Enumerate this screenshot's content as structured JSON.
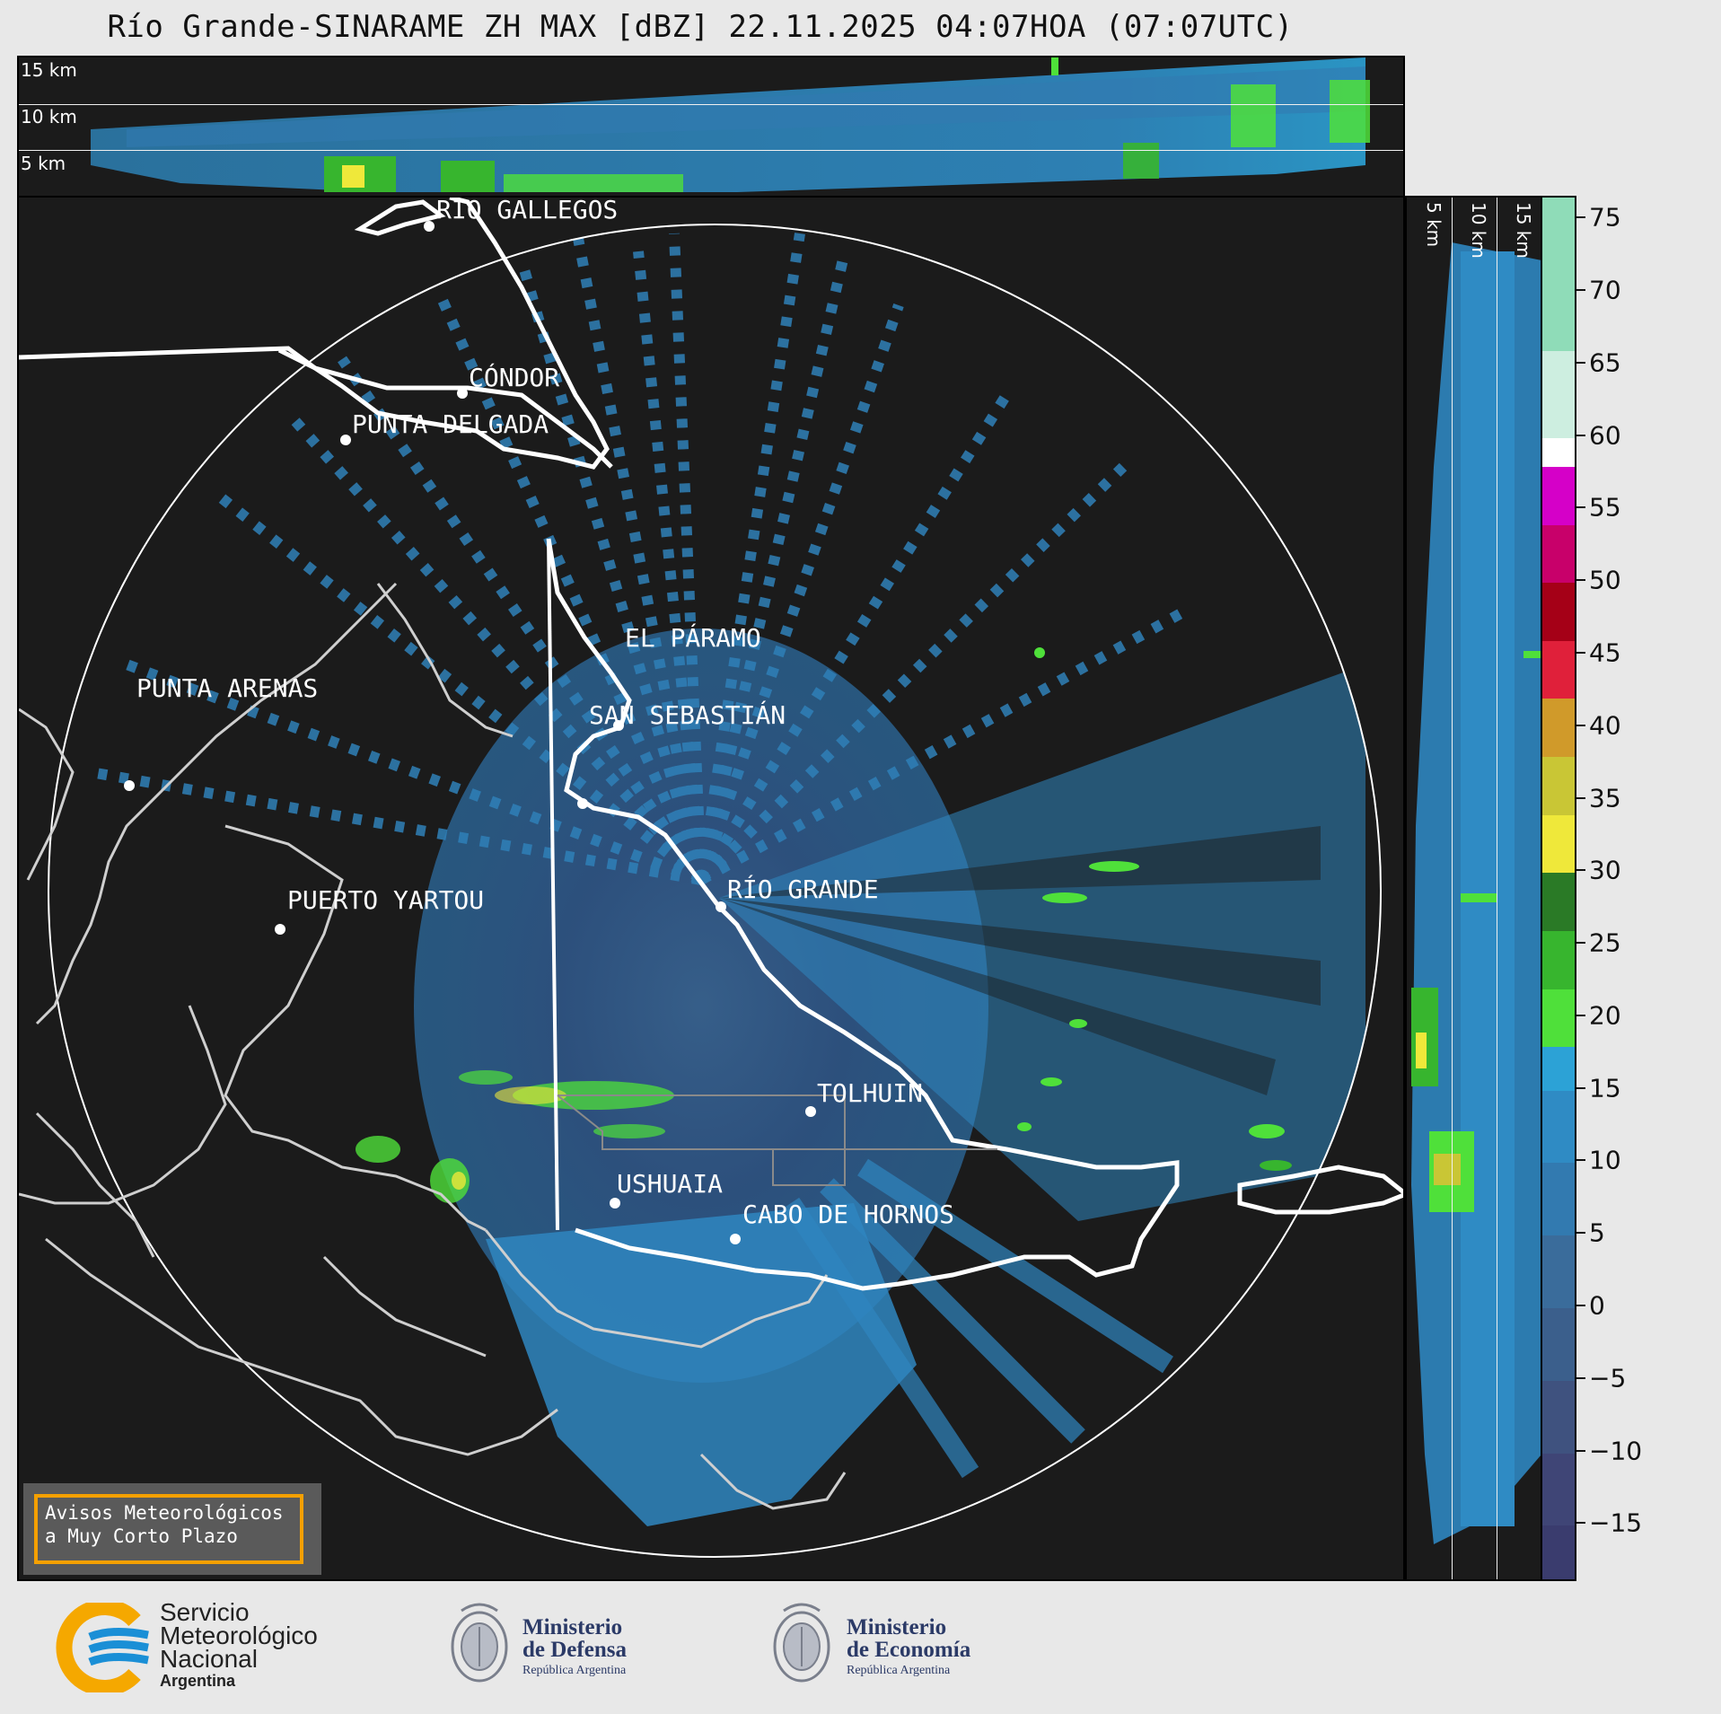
{
  "header": {
    "title": "Río Grande-SINARAME ZH MAX [dBZ] 22.11.2025 04:07HOA (07:07UTC)"
  },
  "top_panel": {
    "altitude_labels": [
      "15 km",
      "10 km",
      "5 km"
    ]
  },
  "side_panel": {
    "altitude_labels": [
      "5 km",
      "10 km",
      "15 km"
    ]
  },
  "map": {
    "cities": [
      "RÍO GALLEGOS",
      "CÓNDOR",
      "PUNTA DELGADA",
      "EL PÁRAMO",
      "SAN SEBASTIÁN",
      "PUNTA ARENAS",
      "RÍO GRANDE",
      "PUERTO YARTOU",
      "TOLHUIN",
      "USHUAIA",
      "CABO DE HORNOS"
    ]
  },
  "colorbar": {
    "unit": "dBZ",
    "range": [
      -19,
      76.5
    ],
    "ticks": [
      "75",
      "70",
      "65",
      "60",
      "55",
      "50",
      "45",
      "40",
      "35",
      "30",
      "25",
      "20",
      "15",
      "10",
      "5",
      "0",
      "−5",
      "−10",
      "−15"
    ],
    "tick_values": [
      75,
      70,
      65,
      60,
      55,
      50,
      45,
      40,
      35,
      30,
      25,
      20,
      15,
      10,
      5,
      0,
      -5,
      -10,
      -15
    ],
    "bands": [
      {
        "from": -19,
        "to": -15,
        "color": "#3a3c6e"
      },
      {
        "from": -15,
        "to": -10,
        "color": "#3f4576"
      },
      {
        "from": -10,
        "to": -5,
        "color": "#3f527f"
      },
      {
        "from": -5,
        "to": 0,
        "color": "#3b5f8c"
      },
      {
        "from": 0,
        "to": 5,
        "color": "#3a6c9b"
      },
      {
        "from": 5,
        "to": 10,
        "color": "#327ab0"
      },
      {
        "from": 10,
        "to": 15,
        "color": "#2f8bc4"
      },
      {
        "from": 15,
        "to": 18,
        "color": "#2ca2d6"
      },
      {
        "from": 18,
        "to": 22,
        "color": "#4fe03a"
      },
      {
        "from": 22,
        "to": 26,
        "color": "#37b52e"
      },
      {
        "from": 26,
        "to": 30,
        "color": "#2a7a26"
      },
      {
        "from": 30,
        "to": 34,
        "color": "#efe83a"
      },
      {
        "from": 34,
        "to": 38,
        "color": "#c9c635"
      },
      {
        "from": 38,
        "to": 42,
        "color": "#d09a2a"
      },
      {
        "from": 42,
        "to": 46,
        "color": "#e0203a"
      },
      {
        "from": 46,
        "to": 50,
        "color": "#a50017"
      },
      {
        "from": 50,
        "to": 54,
        "color": "#c8006a"
      },
      {
        "from": 54,
        "to": 58,
        "color": "#d500c8"
      },
      {
        "from": 58,
        "to": 60,
        "color": "#ffffff"
      },
      {
        "from": 60,
        "to": 66,
        "color": "#cdeee0"
      },
      {
        "from": 66,
        "to": 76.5,
        "color": "#8fdcb8"
      }
    ]
  },
  "notice": {
    "line1": "Avisos Meteorológicos",
    "line2": "a Muy Corto Plazo"
  },
  "footer": {
    "smn": {
      "line1": "Servicio",
      "line2": "Meteorológico",
      "line3": "Nacional",
      "line4": "Argentina"
    },
    "defensa": {
      "line1": "Ministerio",
      "line2": "de Defensa",
      "line3": "República Argentina"
    },
    "economia": {
      "line1": "Ministerio",
      "line2": "de Economía",
      "line3": "República Argentina"
    }
  },
  "colors": {
    "background": "#1b1b1b",
    "coast": "#cfcfcf",
    "border": "#ffffff",
    "notice_border": "#f5a000",
    "smn_blue": "#1a8fd6",
    "smn_yellow": "#f5a800",
    "ministry_navy": "#2b3a67"
  }
}
